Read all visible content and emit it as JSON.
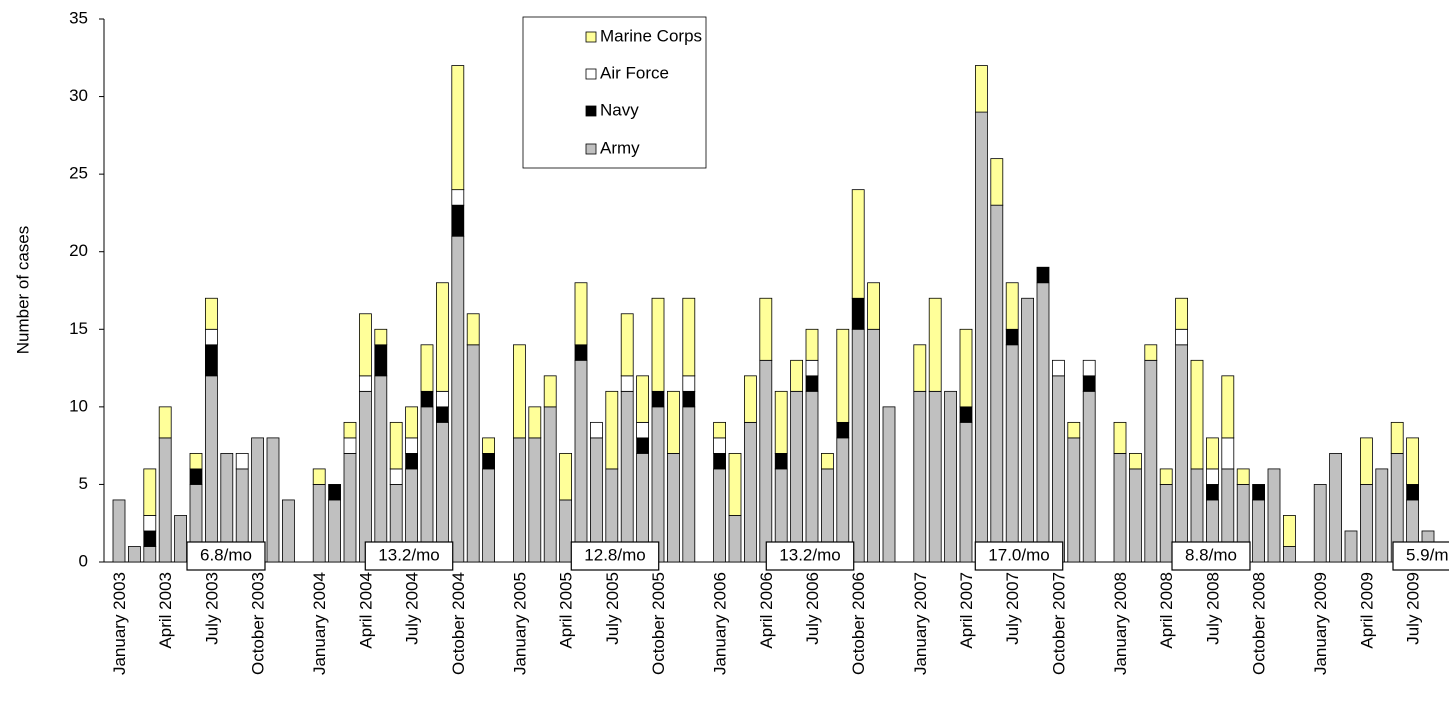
{
  "chart_data": {
    "type": "stacked-bar",
    "y_label": "Number of cases",
    "categories": [
      "January 2003",
      null,
      null,
      "April 2003",
      null,
      null,
      "July 2003",
      null,
      null,
      "October 2003",
      null,
      null,
      "January 2004",
      null,
      null,
      "April 2004",
      null,
      null,
      "July 2004",
      null,
      null,
      "October 2004",
      null,
      null,
      "January 2005",
      null,
      null,
      "April 2005",
      null,
      null,
      "July 2005",
      null,
      null,
      "October 2005",
      null,
      null,
      "January 2006",
      null,
      null,
      "April 2006",
      null,
      null,
      "July 2006",
      null,
      null,
      "October 2006",
      null,
      null,
      "January 2007",
      null,
      null,
      "April 2007",
      null,
      null,
      "July 2007",
      null,
      null,
      "October 2007",
      null,
      null,
      "January 2008",
      null,
      null,
      "April 2008",
      null,
      null,
      "July 2008",
      null,
      null,
      "October 2008",
      null,
      null,
      "January 2009",
      null,
      null,
      "April 2009",
      null,
      null,
      "July 2009",
      null
    ],
    "series": [
      {
        "name": "Army",
        "color": "#c0c0c0",
        "values": [
          4,
          1,
          1,
          8,
          3,
          5,
          12,
          7,
          6,
          8,
          8,
          4,
          5,
          4,
          7,
          11,
          12,
          5,
          6,
          10,
          9,
          21,
          14,
          6,
          8,
          8,
          10,
          4,
          13,
          8,
          6,
          11,
          7,
          10,
          7,
          10,
          6,
          3,
          9,
          13,
          6,
          11,
          11,
          6,
          8,
          15,
          15,
          10,
          11,
          11,
          11,
          9,
          29,
          23,
          14,
          17,
          18,
          12,
          8,
          11,
          7,
          6,
          13,
          5,
          14,
          6,
          4,
          6,
          5,
          4,
          6,
          1,
          5,
          7,
          2,
          5,
          6,
          7,
          4,
          2
        ]
      },
      {
        "name": "Navy",
        "color": "#000000",
        "values": [
          0,
          0,
          1,
          0,
          0,
          1,
          2,
          0,
          0,
          0,
          0,
          0,
          0,
          1,
          0,
          0,
          2,
          0,
          1,
          1,
          1,
          2,
          0,
          1,
          0,
          0,
          0,
          0,
          1,
          0,
          0,
          0,
          1,
          1,
          0,
          1,
          1,
          0,
          0,
          0,
          1,
          0,
          1,
          0,
          1,
          2,
          0,
          0,
          0,
          0,
          0,
          1,
          0,
          0,
          1,
          0,
          1,
          0,
          0,
          1,
          0,
          0,
          0,
          0,
          0,
          0,
          1,
          0,
          0,
          1,
          0,
          0,
          0,
          0,
          0,
          0,
          0,
          0,
          1,
          0
        ]
      },
      {
        "name": "Air Force",
        "color": "#ffffff",
        "values": [
          0,
          0,
          1,
          0,
          0,
          0,
          1,
          0,
          1,
          0,
          0,
          0,
          0,
          0,
          1,
          1,
          0,
          1,
          1,
          0,
          1,
          1,
          0,
          0,
          0,
          0,
          0,
          0,
          0,
          1,
          0,
          1,
          1,
          0,
          0,
          1,
          1,
          0,
          0,
          0,
          0,
          0,
          1,
          0,
          0,
          0,
          0,
          0,
          0,
          0,
          0,
          0,
          0,
          0,
          0,
          0,
          0,
          1,
          0,
          1,
          0,
          0,
          0,
          0,
          1,
          0,
          1,
          2,
          0,
          0,
          0,
          0,
          0,
          0,
          0,
          0,
          0,
          0,
          0,
          0
        ]
      },
      {
        "name": "Marine Corps",
        "color": "#ffff99",
        "values": [
          0,
          0,
          3,
          2,
          0,
          1,
          2,
          0,
          0,
          0,
          0,
          0,
          1,
          0,
          1,
          4,
          1,
          3,
          2,
          3,
          7,
          8,
          2,
          1,
          6,
          2,
          2,
          3,
          4,
          0,
          5,
          4,
          3,
          6,
          4,
          5,
          1,
          4,
          3,
          4,
          4,
          2,
          2,
          1,
          6,
          7,
          3,
          0,
          3,
          6,
          0,
          5,
          3,
          3,
          3,
          0,
          0,
          0,
          1,
          0,
          2,
          1,
          1,
          1,
          2,
          7,
          2,
          4,
          1,
          0,
          0,
          2,
          0,
          0,
          0,
          3,
          0,
          2,
          3,
          0
        ]
      }
    ],
    "ylim": [
      0,
      35
    ],
    "yticks": [
      0,
      5,
      10,
      15,
      20,
      25,
      30,
      35
    ],
    "annotations": [
      "6.8/mo",
      "13.2/mo",
      "12.8/mo",
      "13.2/mo",
      "17.0/mo",
      "8.8/mo",
      "5.9/mo"
    ]
  }
}
